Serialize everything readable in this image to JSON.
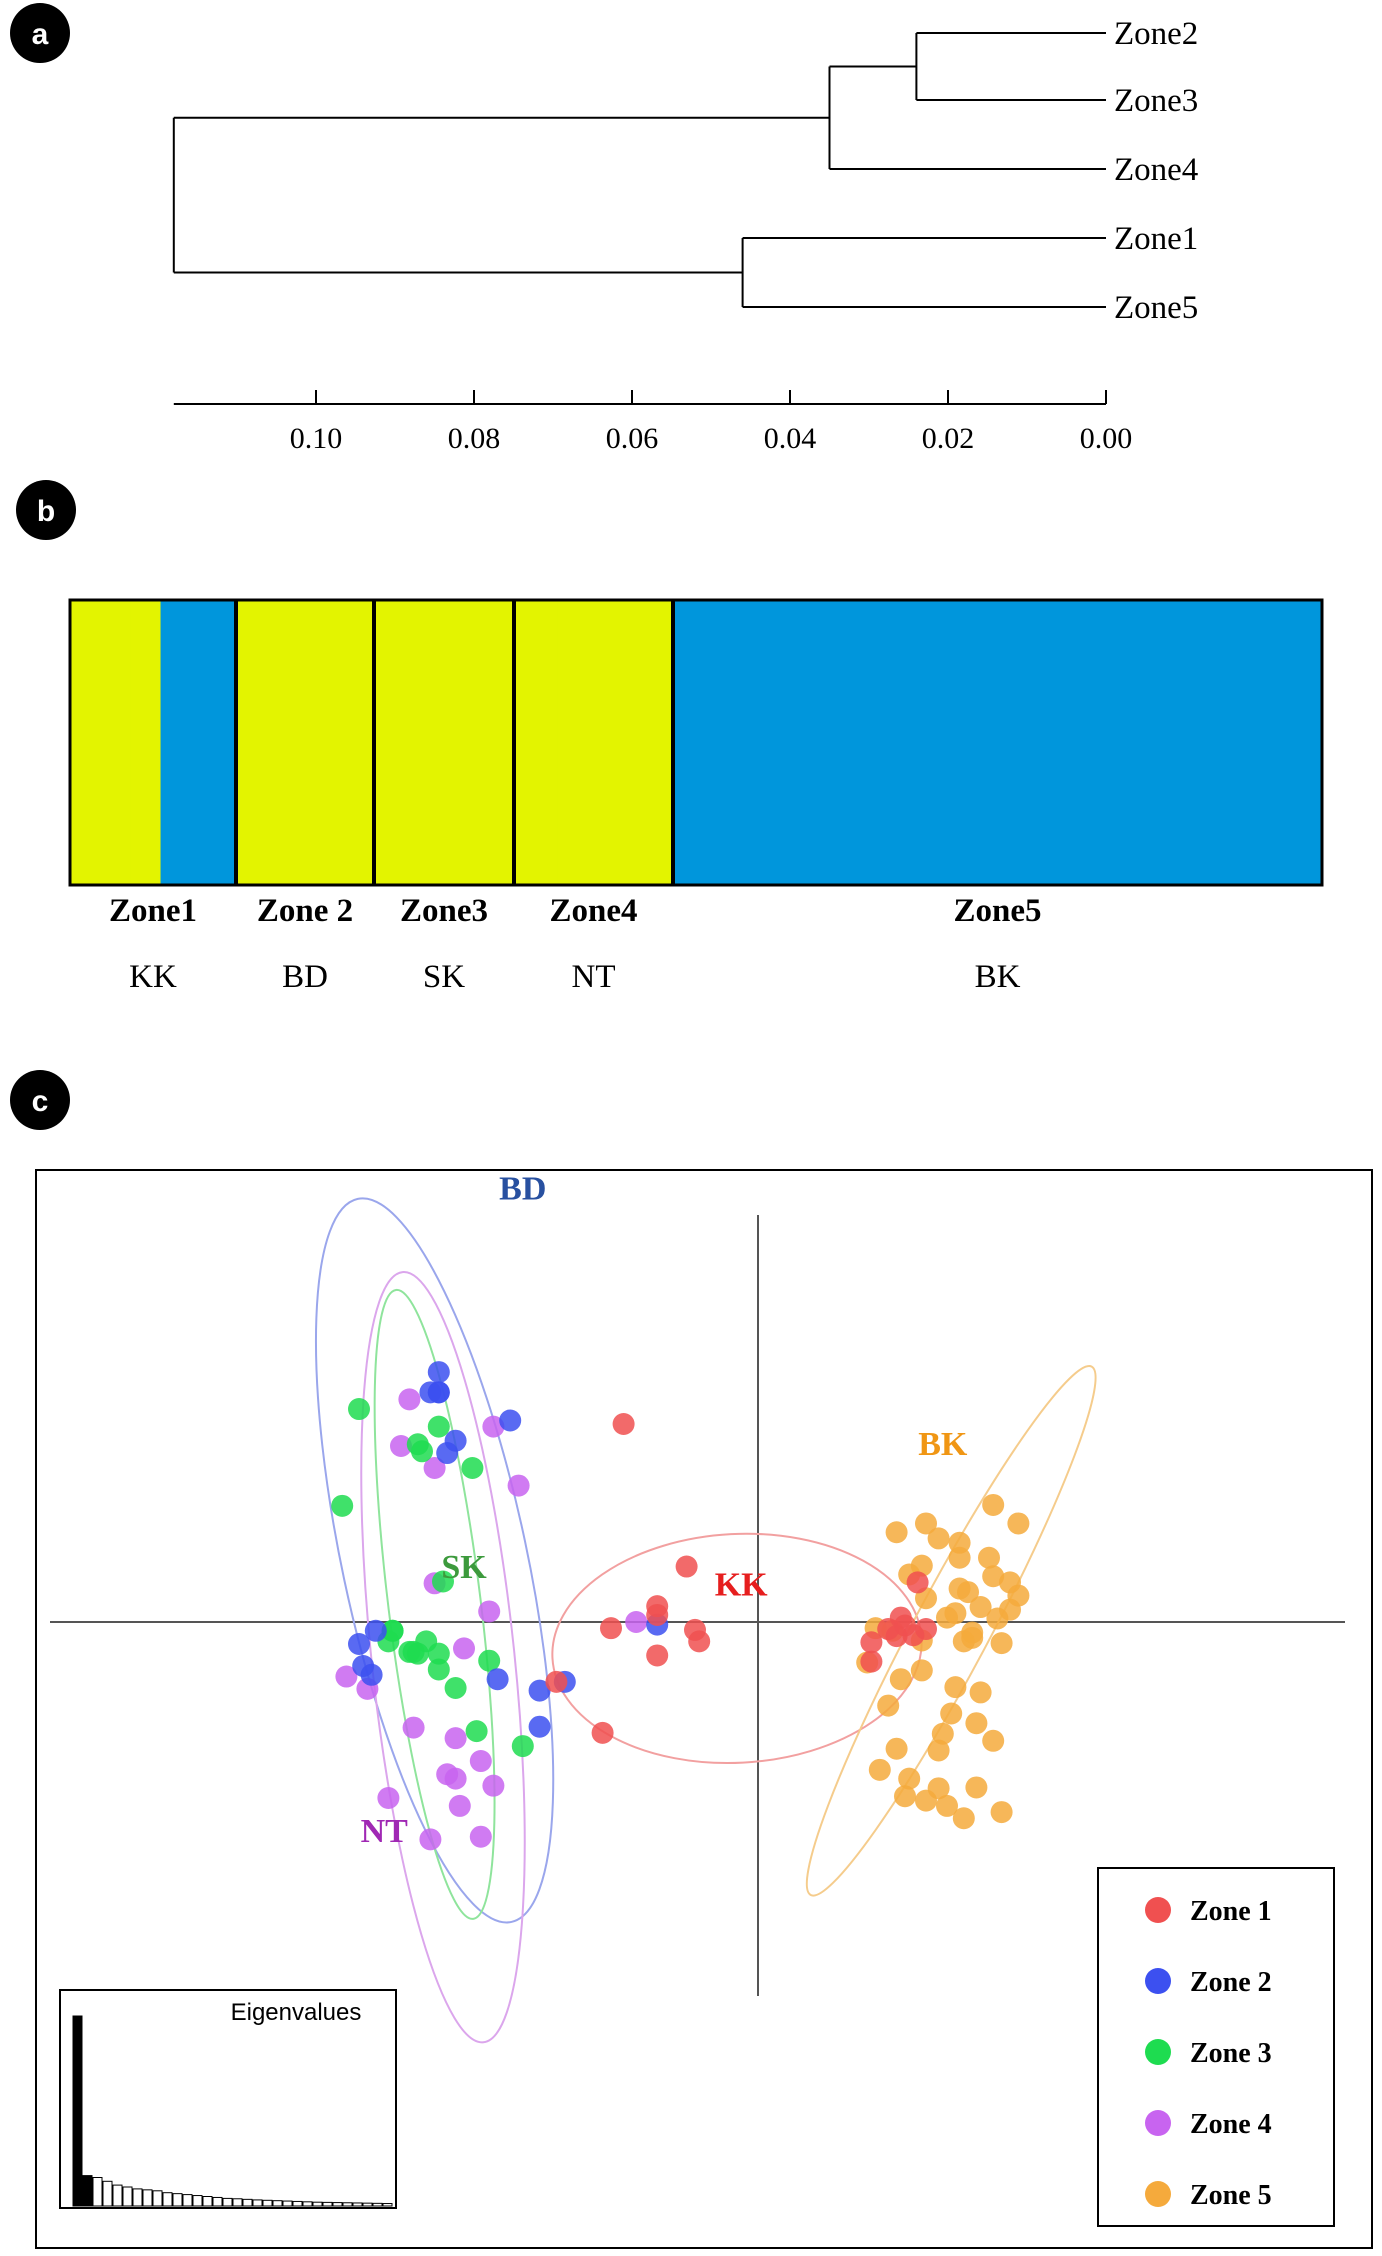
{
  "panels": {
    "a": {
      "badge": "a"
    },
    "b": {
      "badge": "b"
    },
    "c": {
      "badge": "c"
    }
  },
  "colors": {
    "green": "#e3f400",
    "blue": "#0096dc",
    "zone1": "#f05050",
    "zone2": "#3c50f0",
    "zone3": "#1edc50",
    "zone4": "#c864f0",
    "zone5": "#f5aa3c",
    "label_bd": "#2850a0",
    "label_sk": "#3c9a3c",
    "label_kk": "#e61e1e",
    "label_bk": "#f09614",
    "label_nt": "#a028b4"
  },
  "chart_data": [
    {
      "type": "dendrogram",
      "title": "",
      "leaves": [
        "Zone2",
        "Zone3",
        "Zone4",
        "Zone1",
        "Zone5"
      ],
      "merges": [
        {
          "children": [
            "Zone2",
            "Zone3"
          ],
          "height": 0.024
        },
        {
          "children": [
            "Zone2-Zone3",
            "Zone4"
          ],
          "height": 0.035
        },
        {
          "children": [
            "Zone1",
            "Zone5"
          ],
          "height": 0.046
        },
        {
          "children": [
            "Zone2-Zone3-Zone4",
            "Zone1-Zone5"
          ],
          "height": 0.118
        }
      ],
      "axis": {
        "ticks": [
          0.1,
          0.08,
          0.06,
          0.04,
          0.02,
          0.0
        ],
        "tick_labels": [
          "0.10",
          "0.08",
          "0.06",
          "0.04",
          "0.02",
          "0.00"
        ],
        "xlim": [
          0.118,
          0.0
        ],
        "reversed": true
      }
    },
    {
      "type": "stacked-bar",
      "title": "",
      "clusters": [
        "green",
        "blue"
      ],
      "groups": [
        {
          "zone": "Zone1",
          "site": "KK",
          "individuals": 11,
          "green_share": 0.52
        },
        {
          "zone": "Zone 2",
          "site": "BD",
          "individuals": 10,
          "green_share": 0.99
        },
        {
          "zone": "Zone3",
          "site": "SK",
          "individuals": 10,
          "green_share": 1.0
        },
        {
          "zone": "Zone4",
          "site": "NT",
          "individuals": 11,
          "green_share": 1.0
        },
        {
          "zone": "Zone5",
          "site": "BK",
          "individuals": 47,
          "green_share": 0.0
        }
      ],
      "ylim": [
        0,
        1
      ]
    },
    {
      "type": "scatter",
      "title": "",
      "xlabel": "",
      "ylabel": "",
      "xlim": [
        -1.0,
        0.85
      ],
      "ylim": [
        -0.6,
        0.6
      ],
      "series": [
        {
          "name": "Zone 1",
          "site": "KK",
          "x": [
            -0.32,
            -0.17,
            -0.24,
            -0.24,
            -0.35,
            -0.15,
            -0.14,
            -0.24,
            -0.48,
            -0.37,
            0.34,
            0.35,
            0.33,
            0.31,
            0.27,
            0.27,
            0.38,
            0.4,
            0.37
          ],
          "y": [
            0.225,
            0.063,
            0.018,
            0.008,
            -0.007,
            -0.009,
            -0.022,
            -0.038,
            -0.068,
            -0.126,
            0.005,
            -0.004,
            -0.016,
            -0.008,
            -0.023,
            -0.045,
            0.045,
            -0.008,
            -0.015
          ]
        },
        {
          "name": "Zone 2",
          "site": "BD",
          "x": [
            -0.76,
            -0.78,
            -0.76,
            -0.76,
            -0.59,
            -0.72,
            -0.74,
            -0.91,
            -0.95,
            -0.94,
            -0.92,
            -0.46,
            -0.24,
            -0.62,
            -0.52,
            -0.52
          ],
          "y": [
            0.284,
            0.261,
            0.261,
            0.261,
            0.229,
            0.206,
            0.192,
            -0.01,
            -0.025,
            -0.05,
            -0.06,
            -0.068,
            -0.003,
            -0.065,
            -0.078,
            -0.119
          ]
        },
        {
          "name": "Zone 3",
          "site": "SK",
          "x": [
            -0.95,
            -0.76,
            -0.81,
            -0.8,
            -0.68,
            -0.99,
            -0.75,
            -0.87,
            -0.87,
            -0.88,
            -0.79,
            -0.83,
            -0.82,
            -0.81,
            -0.76,
            -0.64,
            -0.76,
            -0.72,
            -0.67,
            -0.56
          ],
          "y": [
            0.242,
            0.222,
            0.202,
            0.194,
            0.175,
            0.132,
            0.046,
            -0.01,
            -0.01,
            -0.022,
            -0.022,
            -0.034,
            -0.034,
            -0.036,
            -0.036,
            -0.044,
            -0.054,
            -0.075,
            -0.124,
            -0.141
          ]
        },
        {
          "name": "Zone 4",
          "site": "NT",
          "x": [
            -0.83,
            -0.63,
            -0.85,
            -0.77,
            -0.57,
            -0.77,
            -0.64,
            -0.7,
            -0.29,
            -0.98,
            -0.93,
            -0.82,
            -0.72,
            -0.66,
            -0.74,
            -0.72,
            -0.63,
            -0.88,
            -0.71,
            -0.66,
            -0.78
          ],
          "y": [
            0.253,
            0.222,
            0.2,
            0.175,
            0.155,
            0.044,
            0.012,
            -0.03,
            0.0,
            -0.062,
            -0.076,
            -0.12,
            -0.132,
            -0.158,
            -0.173,
            -0.178,
            -0.186,
            -0.2,
            -0.209,
            -0.244,
            -0.247
          ]
        },
        {
          "name": "Zone 5",
          "site": "BK",
          "x": [
            0.56,
            0.62,
            0.4,
            0.33,
            0.43,
            0.48,
            0.48,
            0.55,
            0.39,
            0.36,
            0.56,
            0.6,
            0.48,
            0.5,
            0.62,
            0.4,
            0.53,
            0.6,
            0.47,
            0.45,
            0.57,
            0.28,
            0.32,
            0.51,
            0.51,
            0.39,
            0.49,
            0.58,
            0.26,
            0.39,
            0.34,
            0.47,
            0.53,
            0.31,
            0.46,
            0.52,
            0.44,
            0.56,
            0.33,
            0.43,
            0.29,
            0.36,
            0.52,
            0.43,
            0.35,
            0.4,
            0.45,
            0.58,
            0.49
          ],
          "y": [
            0.133,
            0.112,
            0.112,
            0.102,
            0.095,
            0.09,
            0.073,
            0.073,
            0.064,
            0.054,
            0.052,
            0.045,
            0.038,
            0.034,
            0.03,
            0.027,
            0.017,
            0.014,
            0.01,
            0.005,
            0.004,
            -0.007,
            -0.01,
            -0.012,
            -0.018,
            -0.021,
            -0.022,
            -0.024,
            -0.046,
            -0.055,
            -0.065,
            -0.074,
            -0.08,
            -0.095,
            -0.104,
            -0.115,
            -0.127,
            -0.135,
            -0.144,
            -0.146,
            -0.168,
            -0.178,
            -0.188,
            -0.189,
            -0.198,
            -0.203,
            -0.209,
            -0.216,
            -0.223
          ]
        }
      ],
      "ellipses": [
        {
          "label": "BD",
          "cx": -0.77,
          "cy": 0.07,
          "rx": 0.22,
          "ry": 0.42,
          "angle_deg": -12
        },
        {
          "label": "SK",
          "cx": -0.77,
          "cy": 0.02,
          "rx": 0.11,
          "ry": 0.36,
          "angle_deg": -7
        },
        {
          "label": "NT",
          "cx": -0.75,
          "cy": -0.04,
          "rx": 0.17,
          "ry": 0.44,
          "angle_deg": -6
        },
        {
          "label": "KK",
          "cx": -0.05,
          "cy": -0.03,
          "rx": 0.44,
          "ry": 0.13,
          "angle_deg": -3
        },
        {
          "label": "BK",
          "cx": 0.46,
          "cy": -0.01,
          "rx": 0.09,
          "ry": 0.34,
          "angle_deg": 28
        }
      ],
      "group_labels": [
        {
          "text": "BD",
          "x": -0.56,
          "y": 0.48
        },
        {
          "text": "SK",
          "x": -0.7,
          "y": 0.05
        },
        {
          "text": "KK",
          "x": -0.04,
          "y": 0.03
        },
        {
          "text": "BK",
          "x": 0.44,
          "y": 0.19
        },
        {
          "text": "NT",
          "x": -0.89,
          "y": -0.25
        }
      ],
      "legend": {
        "position": "bottom-right",
        "entries": [
          "Zone 1",
          "Zone 2",
          "Zone 3",
          "Zone 4",
          "Zone 5"
        ]
      },
      "eigenvalues": {
        "title": "Eigenvalues",
        "values": [
          1.0,
          0.16,
          0.15,
          0.13,
          0.11,
          0.1,
          0.09,
          0.085,
          0.08,
          0.07,
          0.065,
          0.06,
          0.055,
          0.05,
          0.045,
          0.04,
          0.038,
          0.035,
          0.032,
          0.03,
          0.028,
          0.026,
          0.024,
          0.022,
          0.02,
          0.019,
          0.018,
          0.017,
          0.016,
          0.015,
          0.014,
          0.013
        ],
        "highlighted_axes": 2
      }
    }
  ]
}
